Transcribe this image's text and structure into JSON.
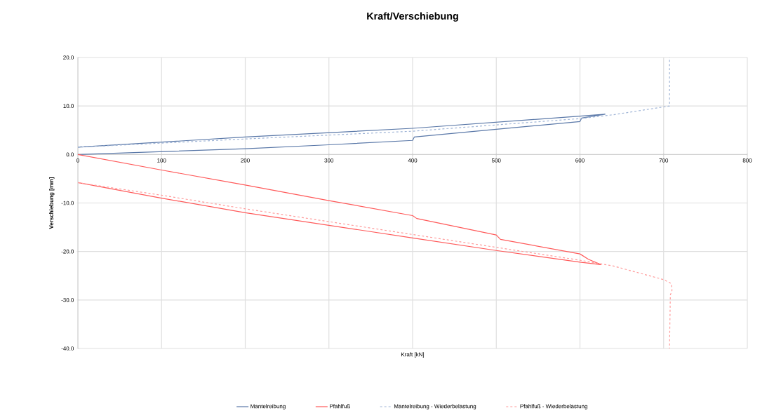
{
  "chart_data": {
    "type": "line",
    "title": "Kraft/Verschiebung",
    "xlabel": "Kraft [kN]",
    "ylabel": "Verschiebung [mm]",
    "xlim": [
      0,
      800
    ],
    "xticks": [
      0,
      100,
      200,
      300,
      400,
      500,
      600,
      700,
      800
    ],
    "ylim": [
      -40,
      20
    ],
    "yticks": [
      {
        "value": -40,
        "label": "-40.0"
      },
      {
        "value": -30,
        "label": "-30.0"
      },
      {
        "value": -20,
        "label": "-20.0"
      },
      {
        "value": -10,
        "label": "-10.0"
      },
      {
        "value": 0,
        "label": "0.0"
      },
      {
        "value": 10,
        "label": "10.0"
      },
      {
        "value": 20,
        "label": "20.0"
      }
    ],
    "grid": true,
    "legend": "bottom",
    "marker": "none",
    "series": [
      {
        "name": "Mantelreibung",
        "color": "#5a78a8",
        "line_style": "solid",
        "x": [
          0,
          200,
          300,
          400,
          402,
          500,
          600,
          602,
          630,
          600,
          400,
          200,
          0
        ],
        "values": [
          0,
          1.2,
          2.0,
          2.9,
          3.6,
          5.2,
          6.8,
          7.5,
          8.3,
          7.9,
          5.4,
          3.6,
          1.5
        ]
      },
      {
        "name": "Pfahlfuß",
        "color": "#ff5a5a",
        "line_style": "solid",
        "x": [
          0,
          100,
          200,
          300,
          400,
          405,
          500,
          505,
          600,
          610,
          625,
          600,
          500,
          400,
          200,
          100,
          0
        ],
        "values": [
          0,
          -3.2,
          -6.3,
          -9.5,
          -12.6,
          -13.2,
          -16.6,
          -17.5,
          -20.5,
          -21.6,
          -22.7,
          -22.2,
          -19.8,
          -17.2,
          -12.0,
          -9.0,
          -5.8
        ]
      },
      {
        "name": "Mantelreibung - Wiederbelastung",
        "color": "#9fb4d6",
        "line_style": "dashed",
        "x": [
          0,
          200,
          400,
          600,
          640,
          707,
          707
        ],
        "values": [
          1.5,
          3.2,
          4.8,
          7.4,
          8.2,
          10,
          20
        ]
      },
      {
        "name": "Pfahlfuß - Wiederbelastung",
        "color": "#ff9a9a",
        "line_style": "dashed",
        "x": [
          0,
          100,
          200,
          400,
          600,
          640,
          700,
          709,
          710,
          708,
          707
        ],
        "values": [
          -5.8,
          -8.4,
          -11.2,
          -16.5,
          -21.8,
          -23.0,
          -25.8,
          -26.6,
          -28,
          -29,
          -40
        ]
      }
    ]
  }
}
